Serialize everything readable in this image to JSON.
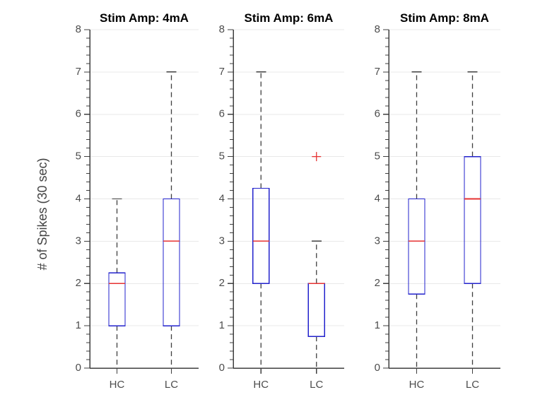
{
  "figure": {
    "background": "#ffffff",
    "ylabel": "# of Spikes (30 sec)"
  },
  "style": {
    "box_color": "#2222cc",
    "median_color": "#e63232",
    "whisker_color": "#3f3f3f",
    "outlier_color": "#e63232",
    "grid_color": "#e8e8e8",
    "axis_color": "#3f3f3f",
    "tick_label_color": "#4c4c4c",
    "title_color": "#000000"
  },
  "chart_data": [
    {
      "type": "box",
      "title": "Stim Amp: 4mA",
      "categories": [
        "HC",
        "LC"
      ],
      "xlabel": "",
      "ylabel": "# of Spikes (30 sec)",
      "ylim": [
        0,
        8
      ],
      "yticks": [
        0,
        1,
        2,
        3,
        4,
        5,
        6,
        7,
        8
      ],
      "grid": "horizontal",
      "legend": "none",
      "boxes": [
        {
          "category": "HC",
          "whisker_low": 0,
          "q1": 1,
          "median": 2,
          "q3": 2.25,
          "whisker_high": 4,
          "outliers": []
        },
        {
          "category": "LC",
          "whisker_low": 0,
          "q1": 1,
          "median": 3,
          "q3": 4,
          "whisker_high": 7,
          "outliers": []
        }
      ]
    },
    {
      "type": "box",
      "title": "Stim Amp: 6mA",
      "categories": [
        "HC",
        "LC"
      ],
      "xlabel": "",
      "ylabel": "",
      "ylim": [
        0,
        8
      ],
      "yticks": [
        0,
        1,
        2,
        3,
        4,
        5,
        6,
        7,
        8
      ],
      "grid": "horizontal",
      "legend": "none",
      "boxes": [
        {
          "category": "HC",
          "whisker_low": 0,
          "q1": 2,
          "median": 3,
          "q3": 4.25,
          "whisker_high": 7,
          "outliers": []
        },
        {
          "category": "LC",
          "whisker_low": 0,
          "q1": 0.75,
          "median": 2,
          "q3": 2,
          "whisker_high": 3,
          "outliers": [
            5
          ]
        }
      ]
    },
    {
      "type": "box",
      "title": "Stim Amp: 8mA",
      "categories": [
        "HC",
        "LC"
      ],
      "xlabel": "",
      "ylabel": "",
      "ylim": [
        0,
        8
      ],
      "yticks": [
        0,
        1,
        2,
        3,
        4,
        5,
        6,
        7,
        8
      ],
      "grid": "horizontal",
      "legend": "none",
      "boxes": [
        {
          "category": "HC",
          "whisker_low": 0,
          "q1": 1.75,
          "median": 3,
          "q3": 4,
          "whisker_high": 7,
          "outliers": []
        },
        {
          "category": "LC",
          "whisker_low": 0,
          "q1": 2,
          "median": 4,
          "q3": 5,
          "whisker_high": 7,
          "outliers": []
        }
      ]
    }
  ]
}
